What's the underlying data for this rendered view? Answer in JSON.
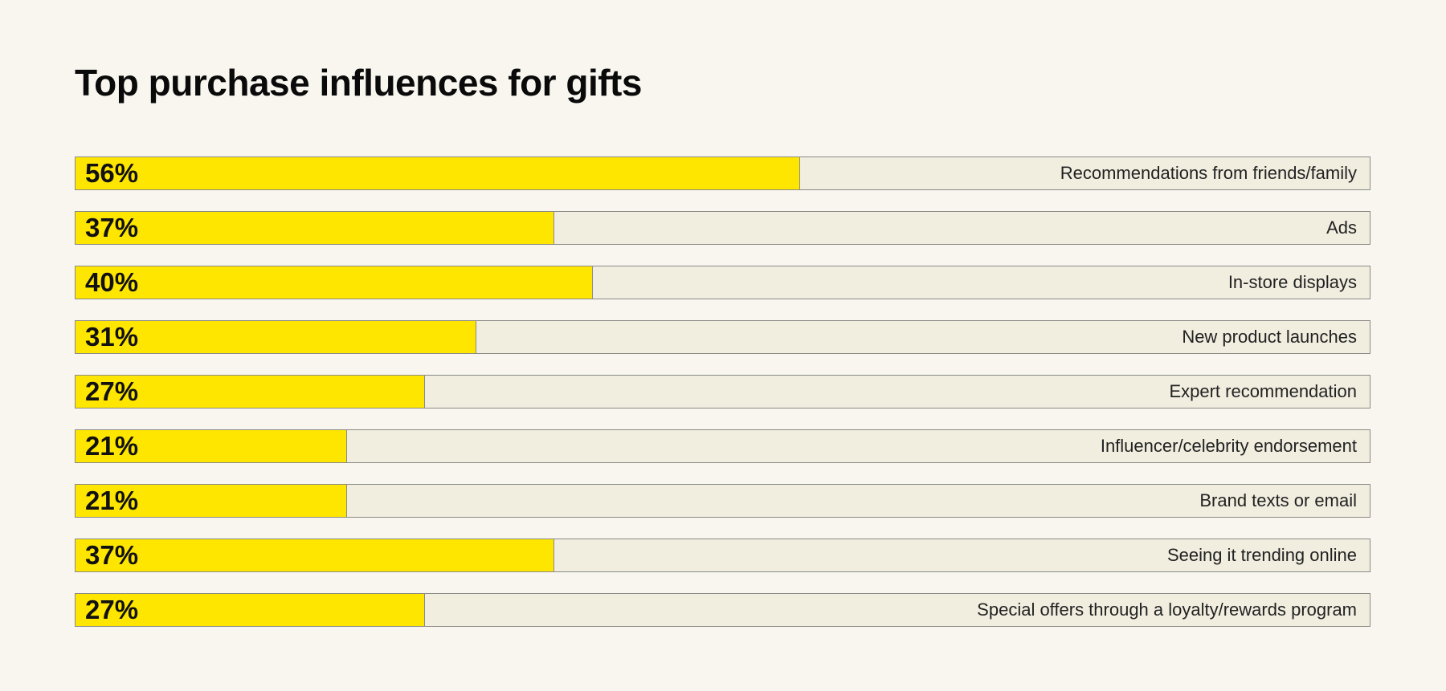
{
  "chart_data": {
    "type": "bar",
    "orientation": "horizontal",
    "title": "Top purchase influences for gifts",
    "categories": [
      "Recommendations from friends/family",
      "Ads",
      "In-store displays",
      "New product launches",
      "Expert recommendation",
      "Influencer/celebrity endorsement",
      "Brand texts or email",
      "Seeing it trending online",
      "Special offers through a loyalty/rewards program"
    ],
    "values": [
      56,
      37,
      40,
      31,
      27,
      21,
      21,
      37,
      27
    ],
    "value_labels": [
      "56%",
      "37%",
      "40%",
      "31%",
      "27%",
      "21%",
      "21%",
      "37%",
      "27%"
    ],
    "unit": "%",
    "xlim": [
      0,
      100
    ],
    "grid": false,
    "legend": "none",
    "colors": {
      "fill": "#ffe600",
      "track": "#f1eee0",
      "background": "#f8f6ef",
      "border": "#8a8a86"
    }
  }
}
